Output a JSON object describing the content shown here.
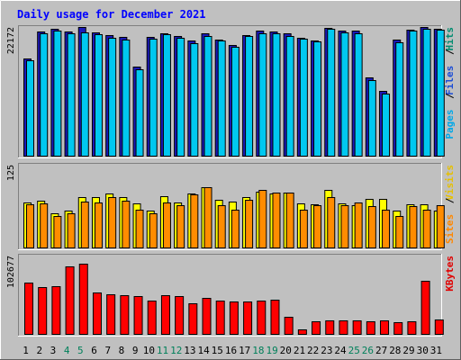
{
  "chart_data": {
    "type": "bar",
    "title": "Daily usage for December 2021",
    "categories": [
      "1",
      "2",
      "3",
      "4",
      "5",
      "6",
      "7",
      "8",
      "9",
      "10",
      "11",
      "12",
      "13",
      "14",
      "15",
      "16",
      "17",
      "18",
      "19",
      "20",
      "21",
      "22",
      "23",
      "24",
      "25",
      "26",
      "27",
      "28",
      "29",
      "30",
      "31"
    ],
    "weekend_days": [
      "4",
      "5",
      "11",
      "12",
      "18",
      "19",
      "25",
      "26"
    ],
    "panels": [
      {
        "name": "hits",
        "max_label": "22172",
        "ymax": 22172,
        "side_labels": [
          {
            "text": "Hits",
            "color": "#008c70"
          },
          {
            "text": "Files",
            "color": "#1b4dd6"
          },
          {
            "text": "Pages",
            "color": "#00a8e8"
          }
        ],
        "series": [
          {
            "name": "Hits",
            "color": "#1a1ab8",
            "values": [
              16800,
              21350,
              21800,
              21450,
              22172,
              21300,
              20800,
              20500,
              15400,
              20550,
              21100,
              20700,
              19800,
              21050,
              20050,
              19100,
              20850,
              21550,
              21400,
              21150,
              20400,
              19900,
              22000,
              21500,
              21500,
              13500,
              11200,
              19950,
              21700,
              22172,
              21900
            ]
          },
          {
            "name": "Files",
            "color": "#00c8f0",
            "values": [
              16400,
              21100,
              21500,
              21100,
              21300,
              20900,
              20400,
              20050,
              15000,
              20200,
              20900,
              20400,
              19400,
              20700,
              19800,
              18800,
              20600,
              21100,
              21100,
              20700,
              20100,
              19650,
              21800,
              21200,
              21150,
              13100,
              10800,
              19600,
              21500,
              21900,
              21700
            ]
          }
        ]
      },
      {
        "name": "visits",
        "max_label": "125",
        "ymax": 125,
        "side_labels": [
          {
            "text": "Visits",
            "color": "#e6c000"
          },
          {
            "text": "Sites",
            "color": "#ff8800"
          }
        ],
        "series": [
          {
            "name": "Visits",
            "color": "#ffff00",
            "values": [
              68,
              71,
              52,
              57,
              76,
              76,
              82,
              76,
              67,
              57,
              78,
              68,
              82,
              92,
              72,
              70,
              77,
              85,
              82,
              83,
              67,
              66,
              87,
              67,
              64,
              74,
              74,
              56,
              66,
              66,
              56
            ]
          },
          {
            "name": "Sites",
            "color": "#ff8c00",
            "values": [
              66,
              67,
              49,
              53,
              70,
              69,
              76,
              71,
              58,
              53,
              69,
              64,
              81,
              91,
              65,
              58,
              73,
              87,
              83,
              83,
              58,
              65,
              77,
              65,
              68,
              63,
              58,
              48,
              63,
              58,
              64
            ]
          }
        ]
      },
      {
        "name": "kbytes",
        "max_label": "102677",
        "ymax": 106500,
        "side_labels": [
          {
            "text": "KBytes",
            "color": "#e00000"
          }
        ],
        "series": [
          {
            "name": "KBytes",
            "color": "#ff0000",
            "values": [
              70500,
              64600,
              65100,
              92000,
              96000,
              56700,
              54500,
              53000,
              51900,
              46000,
              53300,
              51500,
              42500,
              50200,
              45400,
              44900,
              45300,
              45900,
              47200,
              24100,
              7500,
              18600,
              18900,
              18800,
              18900,
              18600,
              19000,
              16800,
              17800,
              72600,
              20900
            ]
          }
        ]
      }
    ]
  }
}
